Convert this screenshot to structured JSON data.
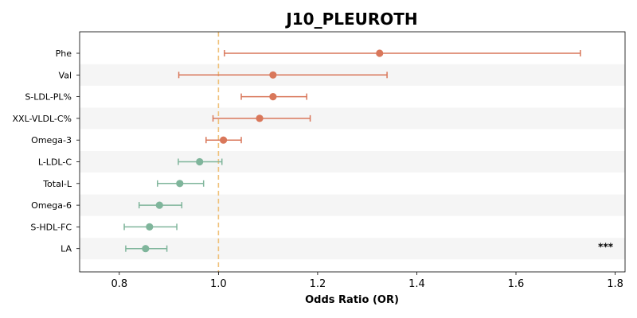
{
  "chart_data": {
    "type": "forest",
    "title": "J10_PLEUROTH",
    "xlabel": "Odds Ratio (OR)",
    "xlim": [
      0.72,
      1.82
    ],
    "xticks": [
      0.8,
      1.0,
      1.2,
      1.4,
      1.6,
      1.8
    ],
    "xtick_labels": [
      "0.8",
      "1.0",
      "1.2",
      "1.4",
      "1.6",
      "1.8"
    ],
    "reference_line": 1.0,
    "colors": {
      "positive": "#d9775a",
      "negative": "#7fb59b",
      "reference": "#f0c27b",
      "band": "#f5f5f5"
    },
    "series": [
      {
        "label": "Phe",
        "or": 1.325,
        "lower": 1.012,
        "upper": 1.73,
        "direction": "positive",
        "annotation": ""
      },
      {
        "label": "Val",
        "or": 1.11,
        "lower": 0.92,
        "upper": 1.34,
        "direction": "positive",
        "annotation": ""
      },
      {
        "label": "S-LDL-PL%",
        "or": 1.11,
        "lower": 1.046,
        "upper": 1.178,
        "direction": "positive",
        "annotation": ""
      },
      {
        "label": "XXL-VLDL-C%",
        "or": 1.083,
        "lower": 0.989,
        "upper": 1.185,
        "direction": "positive",
        "annotation": ""
      },
      {
        "label": "Omega-3",
        "or": 1.01,
        "lower": 0.975,
        "upper": 1.046,
        "direction": "positive",
        "annotation": ""
      },
      {
        "label": "L-LDL-C",
        "or": 0.962,
        "lower": 0.919,
        "upper": 1.007,
        "direction": "negative",
        "annotation": ""
      },
      {
        "label": "Total-L",
        "or": 0.922,
        "lower": 0.877,
        "upper": 0.97,
        "direction": "negative",
        "annotation": ""
      },
      {
        "label": "Omega-6",
        "or": 0.881,
        "lower": 0.84,
        "upper": 0.926,
        "direction": "negative",
        "annotation": ""
      },
      {
        "label": "S-HDL-FC",
        "or": 0.861,
        "lower": 0.81,
        "upper": 0.916,
        "direction": "negative",
        "annotation": ""
      },
      {
        "label": "LA",
        "or": 0.853,
        "lower": 0.813,
        "upper": 0.896,
        "direction": "negative",
        "annotation": "***"
      }
    ]
  }
}
